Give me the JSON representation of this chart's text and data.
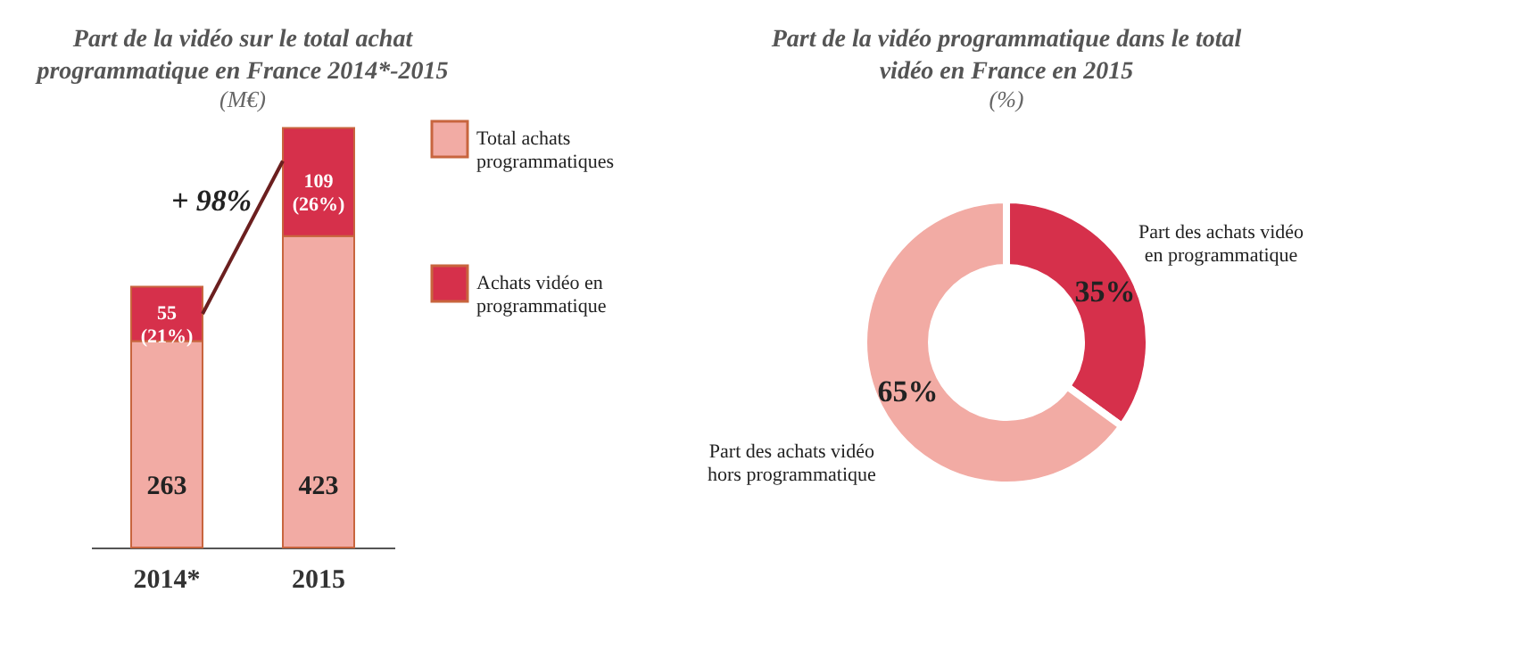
{
  "chart_data": [
    {
      "type": "bar",
      "title": "Part de la vidéo sur le total achat programmatique en France 2014*-2015",
      "subtitle": "(M€)",
      "categories": [
        "2014*",
        "2015"
      ],
      "stacked": true,
      "legend": "right",
      "annotations": [
        "+ 98%"
      ],
      "totals": [
        "263",
        "423"
      ],
      "series": [
        {
          "name": "Total achats programmatiques",
          "color": "#f2aba4",
          "values": [
            208,
            314
          ]
        },
        {
          "name": "Achats vidéo en programmatique",
          "color": "#d6304b",
          "values": [
            55,
            109
          ],
          "value_labels": [
            "55 (21%)",
            "109 (26%)"
          ]
        }
      ]
    },
    {
      "type": "donut",
      "title": "Part de la vidéo programmatique dans le total vidéo  en France en 2015",
      "subtitle": "(%)",
      "categories": [
        "Part des achats vidéo en programmatique",
        "Part des achats vidéo hors programmatique"
      ],
      "values": [
        35,
        65
      ],
      "colors": [
        "#d6304b",
        "#f2aba4"
      ],
      "value_labels": [
        "35%",
        "65%"
      ]
    }
  ]
}
